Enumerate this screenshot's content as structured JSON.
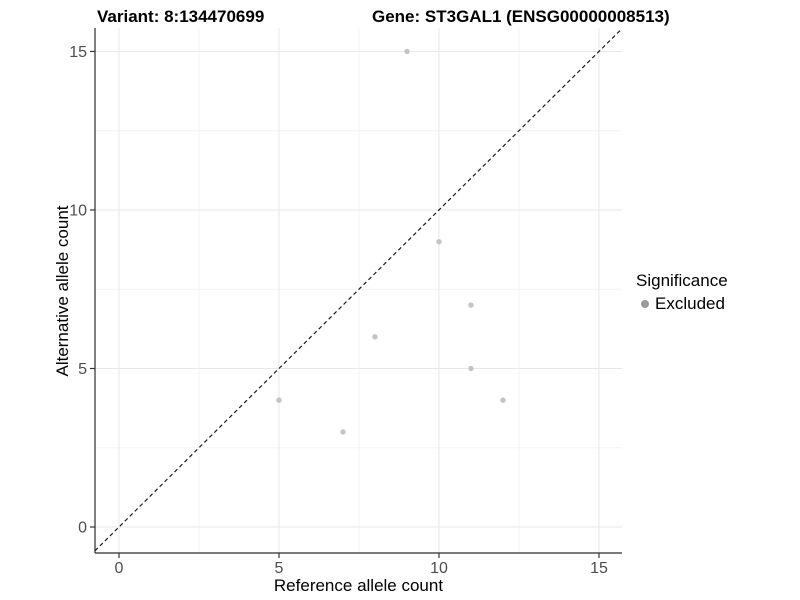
{
  "titles": {
    "variant": "Variant: 8:134470699",
    "gene": "Gene: ST3GAL1 (ENSG00000008513)"
  },
  "legend": {
    "title": "Significance",
    "items": [
      {
        "label": "Excluded",
        "color": "#9b9b9b"
      }
    ]
  },
  "chart_data": {
    "type": "scatter",
    "title": "Variant: 8:134470699 / Gene: ST3GAL1 (ENSG00000008513)",
    "xlabel": "Reference allele count",
    "ylabel": "Alternative allele count",
    "xlim": [
      -0.75,
      15.72
    ],
    "ylim": [
      -0.82,
      15.74
    ],
    "x_ticks": [
      0,
      5,
      10,
      15
    ],
    "x_tick_labels": [
      "0",
      "5",
      "10",
      "15"
    ],
    "y_ticks": [
      0,
      5,
      10,
      15
    ],
    "y_tick_labels": [
      "0",
      "5",
      "10",
      "15"
    ],
    "x_minor_ticks": [
      2.5,
      7.5,
      12.5
    ],
    "y_minor_ticks": [
      2.5,
      7.5,
      12.5
    ],
    "grid": true,
    "legend_position": "right",
    "series": [
      {
        "name": "Excluded",
        "color": "#c4c4c4",
        "points": [
          {
            "x": 5,
            "y": 4
          },
          {
            "x": 7,
            "y": 3
          },
          {
            "x": 8,
            "y": 6
          },
          {
            "x": 9,
            "y": 15
          },
          {
            "x": 10,
            "y": 9
          },
          {
            "x": 11,
            "y": 5
          },
          {
            "x": 11,
            "y": 7
          },
          {
            "x": 12,
            "y": 4
          }
        ]
      }
    ],
    "reference_line": {
      "equation": "y = x",
      "style": "dashed",
      "color": "#1a1a1a"
    }
  },
  "style_colors": {
    "grid_major": "#e7e7e7",
    "grid_minor": "#f3f3f3",
    "axis_line": "#2b2b2b",
    "tick_mark": "#333333",
    "tick_label": "#4d4d4d",
    "point": "#c4c4c4"
  }
}
